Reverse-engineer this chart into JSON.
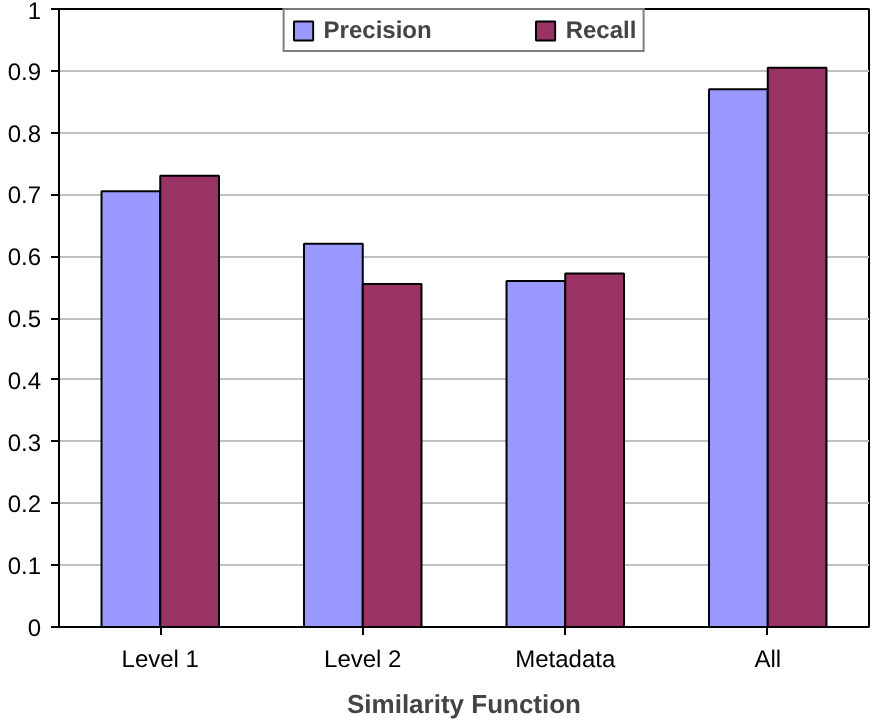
{
  "chart_data": {
    "type": "bar",
    "xlabel": "Similarity Function",
    "categories": [
      "Level 1",
      "Level 2",
      "Metadata",
      "All"
    ],
    "series": [
      {
        "name": "Precision",
        "color": "#9999ff",
        "values": [
          0.705,
          0.62,
          0.56,
          0.87
        ]
      },
      {
        "name": "Recall",
        "color": "#993366",
        "values": [
          0.73,
          0.555,
          0.572,
          0.905
        ]
      }
    ],
    "ylim": [
      0,
      1
    ],
    "yticks": [
      0,
      0.1,
      0.2,
      0.3,
      0.4,
      0.5,
      0.6,
      0.7,
      0.8,
      0.9,
      1
    ],
    "grid": "y",
    "legend": "top"
  }
}
